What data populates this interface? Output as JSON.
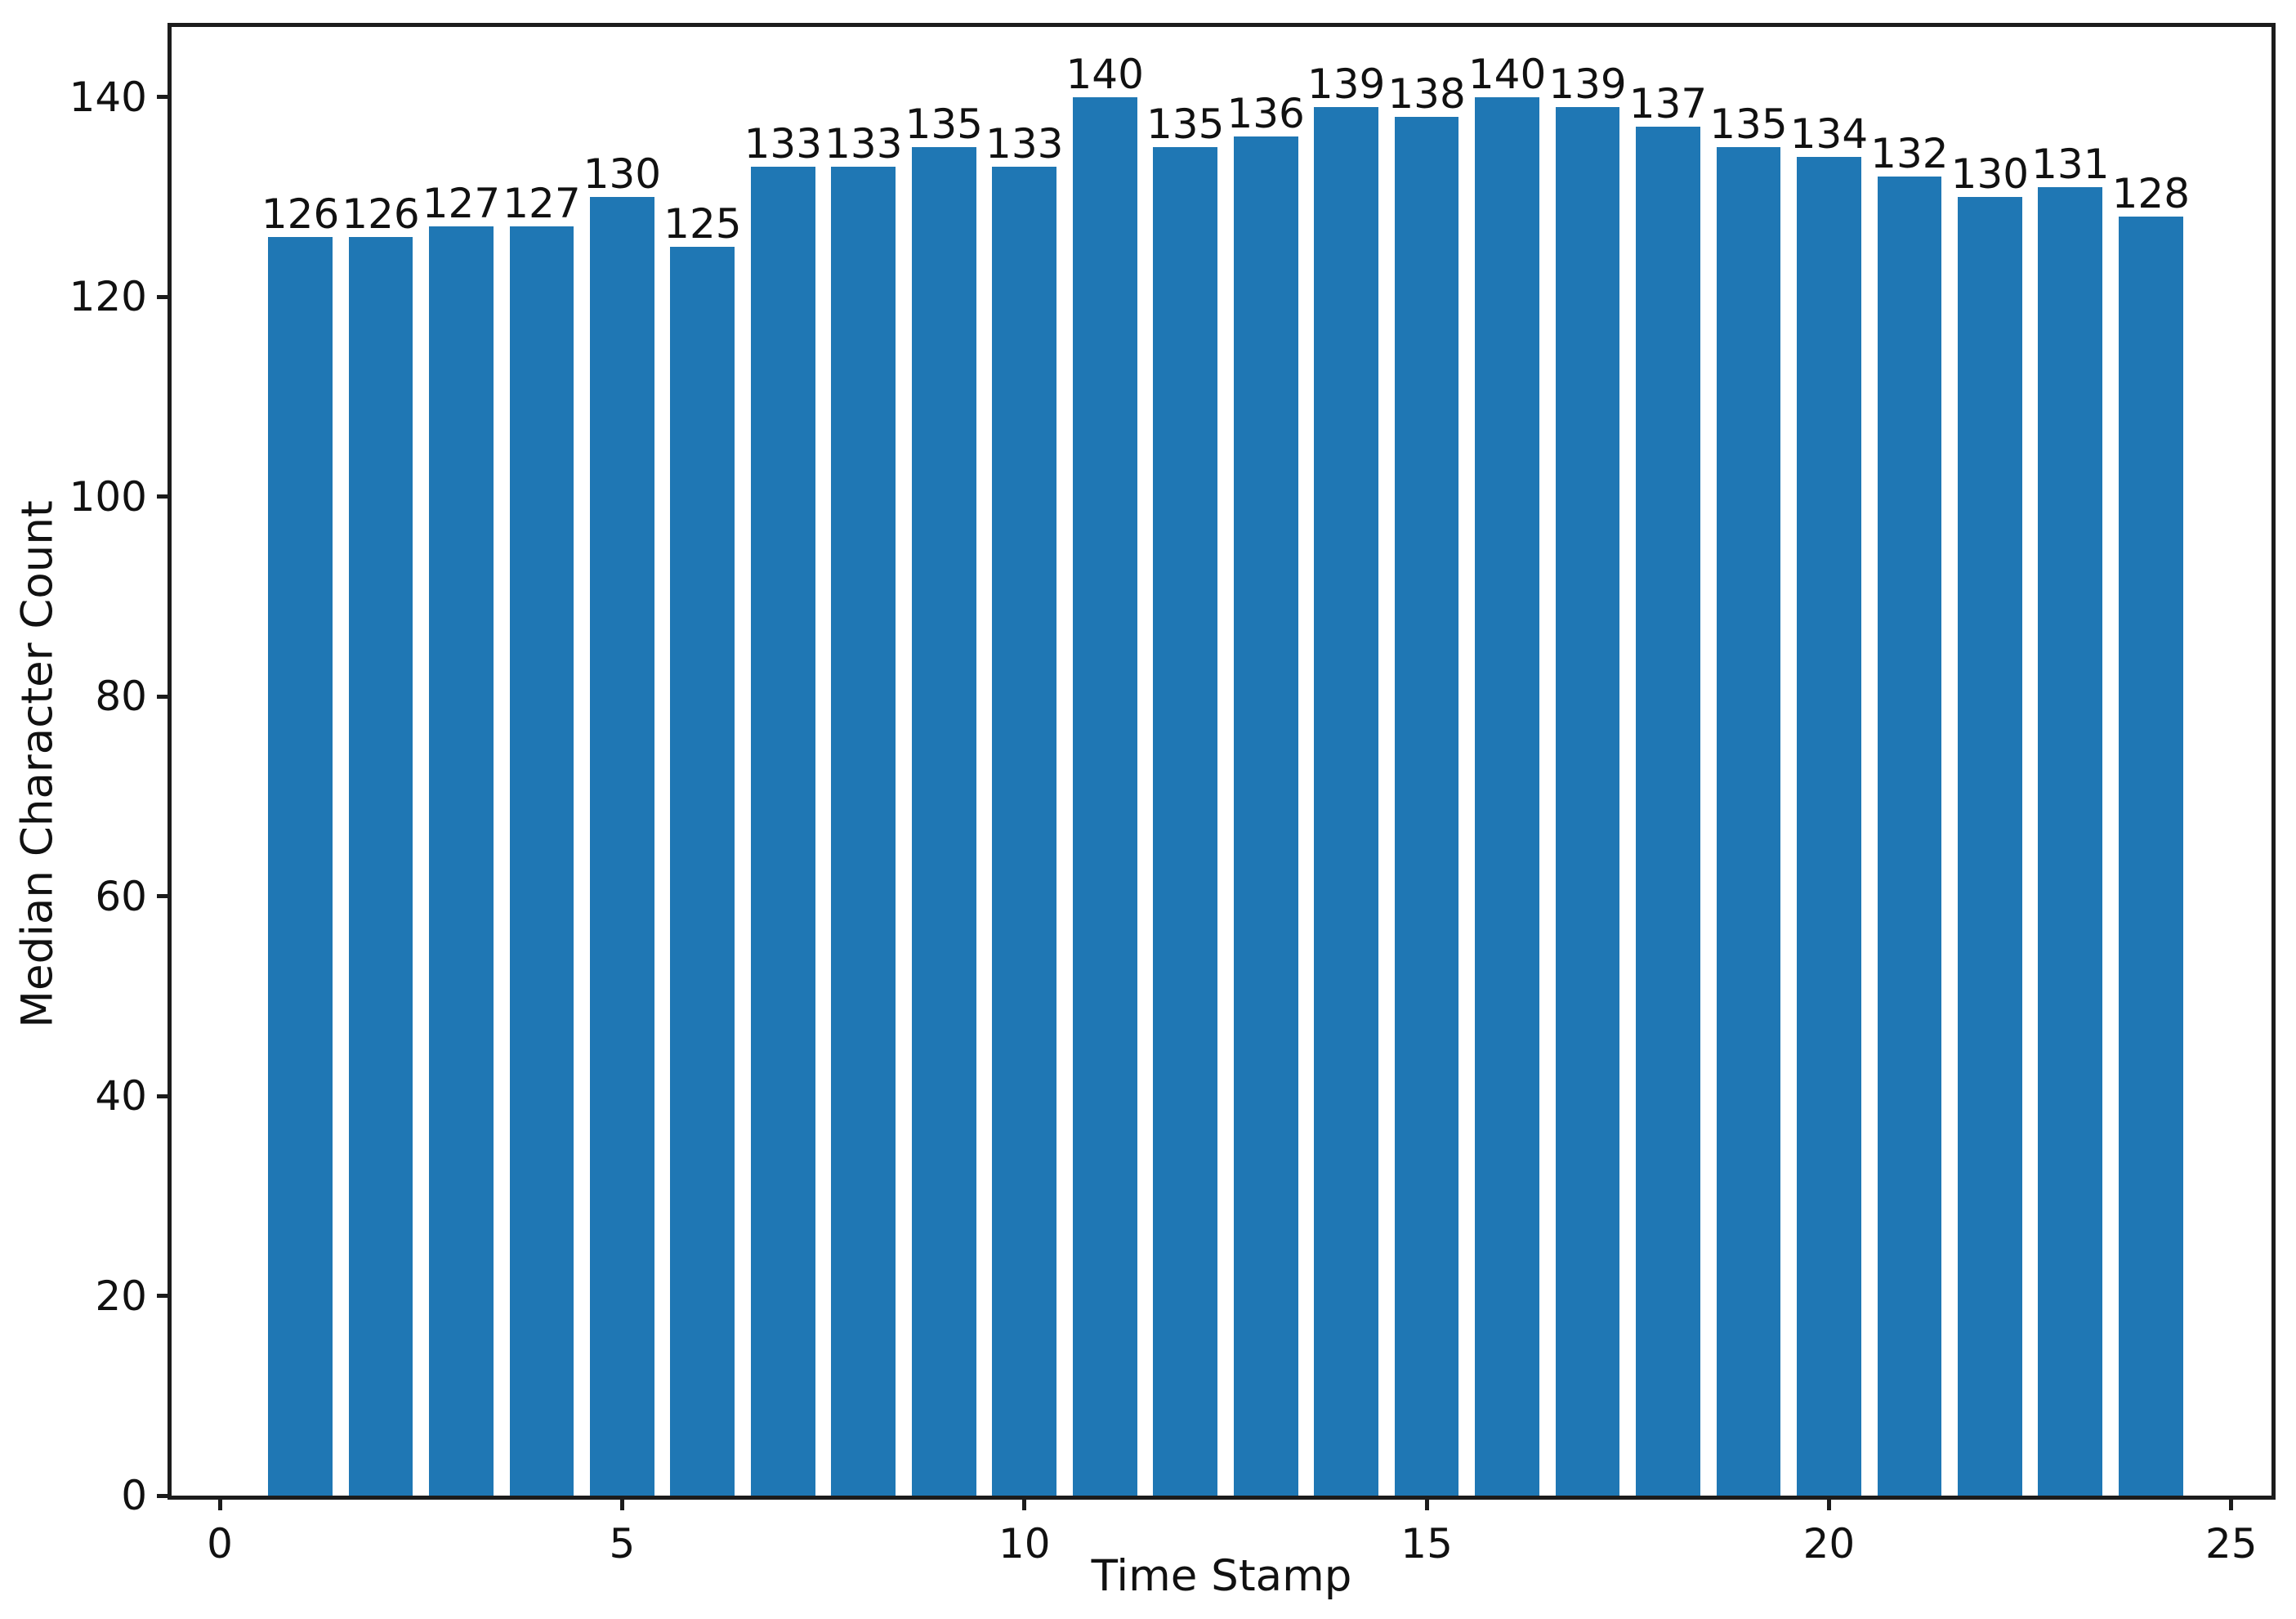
{
  "chart_data": {
    "type": "bar",
    "x": [
      1,
      2,
      3,
      4,
      5,
      6,
      7,
      8,
      9,
      10,
      11,
      12,
      13,
      14,
      15,
      16,
      17,
      18,
      19,
      20,
      21,
      22,
      23,
      24
    ],
    "values": [
      126,
      126,
      127,
      127,
      130,
      125,
      133,
      133,
      135,
      133,
      140,
      135,
      136,
      139,
      138,
      140,
      139,
      137,
      135,
      134,
      132,
      130,
      131,
      128
    ],
    "bar_value_labels": [
      "126",
      "126",
      "127",
      "127",
      "130",
      "125",
      "133",
      "133",
      "135",
      "133",
      "140",
      "135",
      "136",
      "139",
      "138",
      "140",
      "139",
      "137",
      "135",
      "134",
      "132",
      "130",
      "131",
      "128"
    ],
    "title": "",
    "xlabel": "Time Stamp",
    "ylabel": "Median Character Count",
    "xticks": [
      0,
      5,
      10,
      15,
      20,
      25
    ],
    "yticks": [
      0,
      20,
      40,
      60,
      80,
      100,
      120,
      140
    ],
    "xlim": [
      -0.6,
      25.5
    ],
    "ylim": [
      0,
      147
    ],
    "bar_width": 0.8,
    "bar_color": "#1f77b4",
    "axis_color": "#1c1c1c",
    "text_color": "#111111",
    "background_color": "#ffffff",
    "grid": false,
    "legend": false
  }
}
